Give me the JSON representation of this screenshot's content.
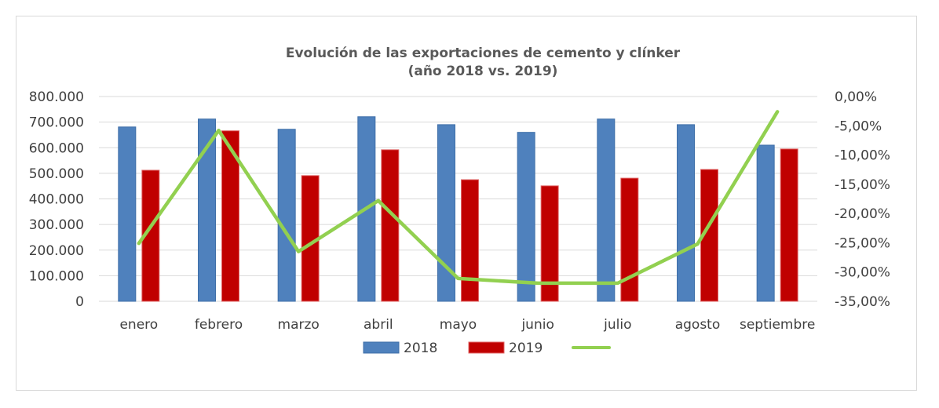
{
  "chart_data": {
    "type": "bar",
    "title": "Evolución de las exportaciones de cemento y clínker",
    "subtitle": "(año 2018 vs. 2019)",
    "categories": [
      "enero",
      "febrero",
      "marzo",
      "abril",
      "mayo",
      "junio",
      "julio",
      "agosto",
      "septiembre"
    ],
    "series": [
      {
        "name": "2018",
        "type": "bar",
        "axis": "left",
        "color": "#4f81bd",
        "values": [
          681000,
          712000,
          672000,
          721000,
          690000,
          660000,
          712000,
          690000,
          610000
        ]
      },
      {
        "name": "2019",
        "type": "bar",
        "axis": "left",
        "color": "#c00000",
        "values": [
          512000,
          666000,
          491000,
          592000,
          475000,
          451000,
          481000,
          515000,
          595000
        ]
      },
      {
        "name": "",
        "type": "line",
        "axis": "right",
        "color": "#92d050",
        "values": [
          -25.1,
          -5.8,
          -26.5,
          -17.8,
          -31.1,
          -31.9,
          -31.9,
          -25.2,
          -2.6
        ]
      }
    ],
    "left_axis": {
      "ylim": [
        0,
        800000
      ],
      "tick_labels": [
        "0",
        "100.000",
        "200.000",
        "300.000",
        "400.000",
        "500.000",
        "600.000",
        "700.000",
        "800.000"
      ]
    },
    "right_axis": {
      "ylim": [
        -35,
        0
      ],
      "tick_labels": [
        "-35,00%",
        "-30,00%",
        "-25,00%",
        "-20,00%",
        "-15,00%",
        "-10,00%",
        "-5,00%",
        "0,00%"
      ]
    },
    "grid": true,
    "legend_position": "bottom",
    "legend": [
      "2018",
      "2019",
      ""
    ]
  }
}
